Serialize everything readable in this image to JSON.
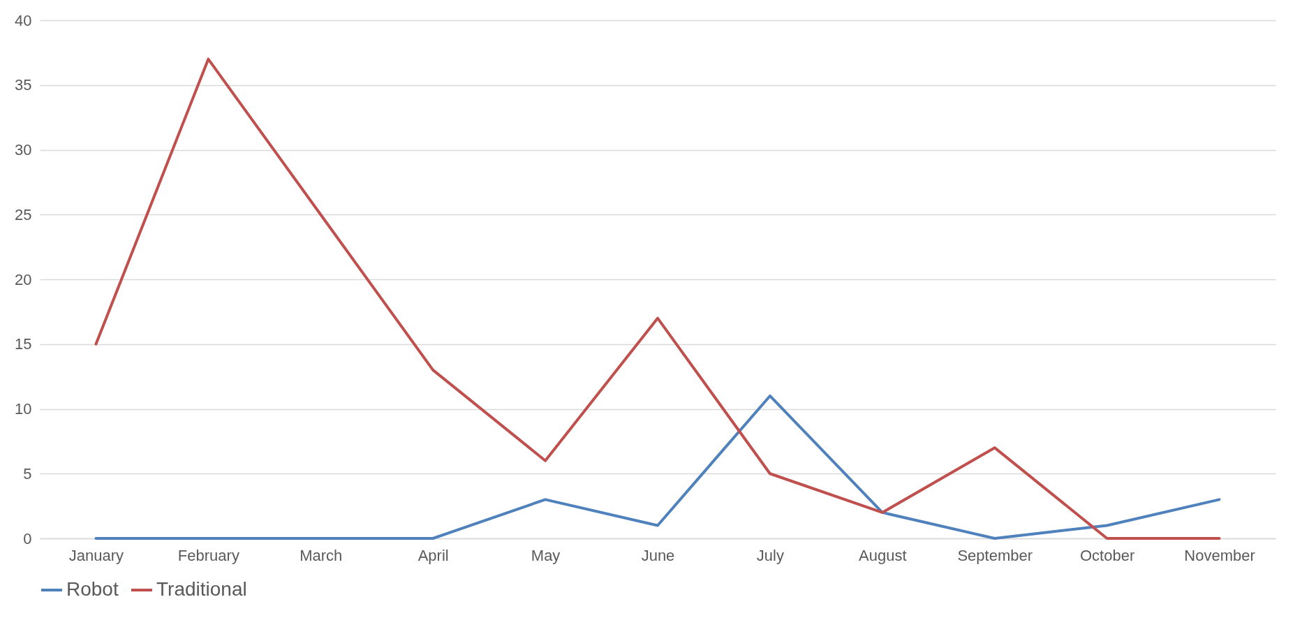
{
  "chart_data": {
    "type": "line",
    "categories": [
      "January",
      "February",
      "March",
      "April",
      "May",
      "June",
      "July",
      "August",
      "September",
      "October",
      "November"
    ],
    "series": [
      {
        "name": "Robot",
        "color": "#4f81bd",
        "values": [
          0,
          0,
          0,
          0,
          3,
          1,
          11,
          2,
          0,
          1,
          3
        ]
      },
      {
        "name": "Traditional",
        "color": "#c0504d",
        "values": [
          15,
          37,
          25,
          13,
          6,
          17,
          5,
          2,
          7,
          0,
          0
        ]
      }
    ],
    "ylim": [
      0,
      40
    ],
    "yticks": [
      0,
      5,
      10,
      15,
      20,
      25,
      30,
      35,
      40
    ],
    "grid": "y",
    "legend": "bottom",
    "line_style": "solid"
  }
}
